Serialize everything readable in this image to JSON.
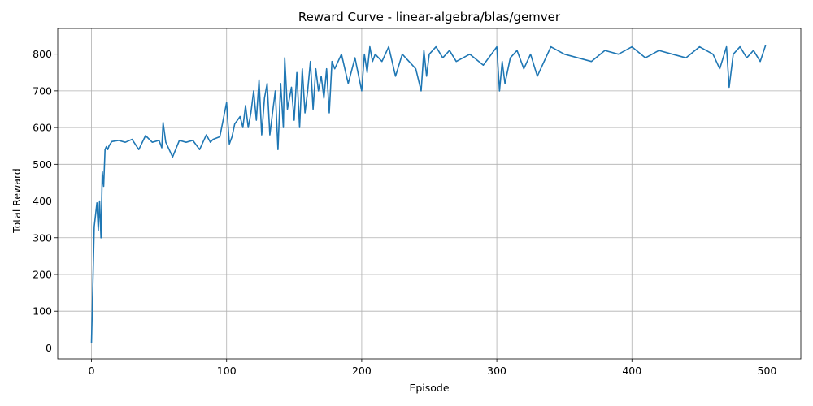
{
  "chart_data": {
    "type": "line",
    "title": "Reward Curve - linear-algebra/blas/gemver",
    "xlabel": "Episode",
    "ylabel": "Total Reward",
    "xlim": [
      -25,
      525
    ],
    "ylim": [
      -30,
      870
    ],
    "grid": true,
    "x_ticks": [
      0,
      100,
      200,
      300,
      400,
      500
    ],
    "y_ticks": [
      0,
      100,
      200,
      300,
      400,
      500,
      600,
      700,
      800
    ],
    "colors": {
      "line": "#1f77b4",
      "grid": "#b0b0b0"
    },
    "series": [
      {
        "x": [
          0,
          2,
          4,
          5,
          6,
          7,
          8,
          9,
          10,
          11,
          12,
          13,
          15,
          20,
          25,
          30,
          35,
          40,
          45,
          50,
          52,
          53,
          55,
          60,
          65,
          70,
          75,
          80,
          85,
          88,
          90,
          95,
          100,
          101,
          102,
          103,
          104,
          106,
          108,
          110,
          112,
          114,
          116,
          118,
          120,
          122,
          124,
          126,
          128,
          130,
          132,
          134,
          136,
          138,
          140,
          142,
          143,
          145,
          148,
          150,
          152,
          154,
          156,
          158,
          160,
          162,
          164,
          166,
          168,
          170,
          172,
          174,
          176,
          178,
          180,
          185,
          190,
          195,
          200,
          202,
          204,
          206,
          208,
          210,
          215,
          220,
          225,
          230,
          235,
          240,
          244,
          246,
          248,
          250,
          255,
          260,
          265,
          270,
          280,
          290,
          300,
          302,
          304,
          306,
          310,
          315,
          320,
          325,
          330,
          340,
          350,
          360,
          370,
          380,
          390,
          400,
          410,
          420,
          430,
          440,
          450,
          460,
          465,
          470,
          472,
          475,
          480,
          485,
          490,
          495,
          499
        ],
        "values": [
          12,
          330,
          395,
          320,
          400,
          300,
          480,
          440,
          540,
          548,
          540,
          550,
          562,
          565,
          560,
          568,
          540,
          578,
          560,
          565,
          545,
          614,
          560,
          520,
          565,
          560,
          565,
          540,
          580,
          560,
          568,
          575,
          668,
          610,
          555,
          565,
          575,
          610,
          620,
          630,
          600,
          660,
          600,
          640,
          700,
          620,
          730,
          580,
          680,
          720,
          580,
          640,
          700,
          540,
          720,
          600,
          790,
          650,
          710,
          620,
          750,
          600,
          760,
          640,
          700,
          780,
          650,
          760,
          700,
          740,
          680,
          760,
          640,
          780,
          760,
          800,
          720,
          790,
          700,
          800,
          750,
          820,
          780,
          800,
          780,
          820,
          740,
          800,
          780,
          760,
          700,
          810,
          740,
          800,
          820,
          790,
          810,
          780,
          800,
          770,
          820,
          700,
          780,
          720,
          790,
          810,
          760,
          800,
          740,
          820,
          800,
          790,
          780,
          810,
          800,
          820,
          790,
          810,
          800,
          790,
          820,
          800,
          760,
          820,
          710,
          800,
          820,
          790,
          810,
          780,
          825
        ]
      }
    ]
  }
}
